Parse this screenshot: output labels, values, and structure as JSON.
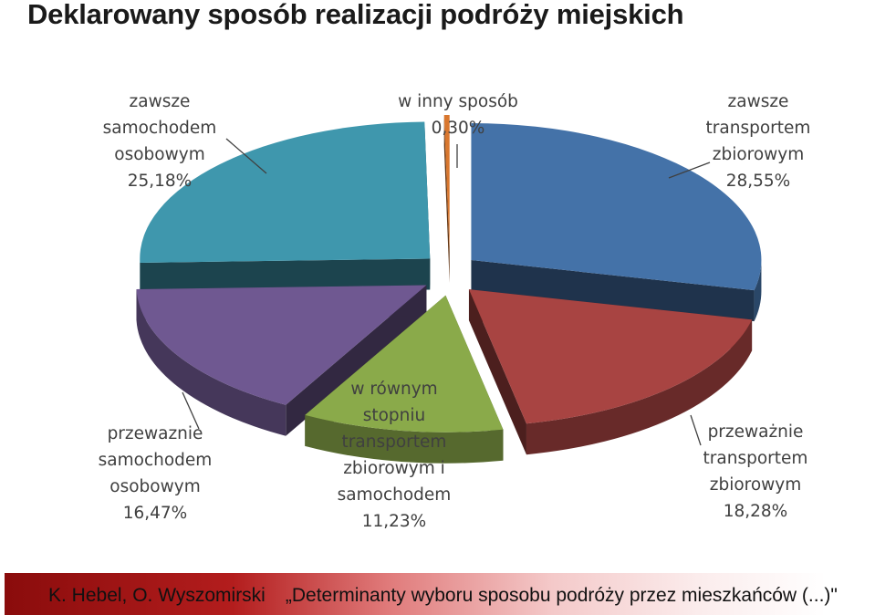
{
  "title": "Deklarowany sposób realizacji podróży miejskich",
  "footer": {
    "authors": "K. Hebel, O. Wyszomirski",
    "work": "„Determinanty wyboru sposobu podróży przez mieszkańców (...)\""
  },
  "chart_data": {
    "type": "pie",
    "title": "Deklarowany sposób realizacji podróży miejskich",
    "slices": [
      {
        "lines": [
          "zawsze",
          "transportem",
          "zbiorowym"
        ],
        "value_label": "28,55%",
        "value": 28.55,
        "color": "#4472a8"
      },
      {
        "lines": [
          "przeważnie",
          "transportem",
          "zbiorowym"
        ],
        "value_label": "18,28%",
        "value": 18.28,
        "color": "#a84442"
      },
      {
        "lines": [
          "w równym",
          "stopniu",
          "transportem",
          "zbiorowym i",
          "samochodem"
        ],
        "value_label": "11,23%",
        "value": 11.23,
        "color": "#8aaa4a"
      },
      {
        "lines": [
          "przewaznie",
          "samochodem",
          "osobowym"
        ],
        "value_label": "16,47%",
        "value": 16.47,
        "color": "#6f5891"
      },
      {
        "lines": [
          "zawsze",
          "samochodem",
          "osobowym"
        ],
        "value_label": "25,18%",
        "value": 25.18,
        "color": "#3f97ad"
      },
      {
        "lines": [
          "w inny sposób"
        ],
        "value_label": "0,30%",
        "value": 0.3,
        "color": "#d9772e"
      }
    ]
  }
}
